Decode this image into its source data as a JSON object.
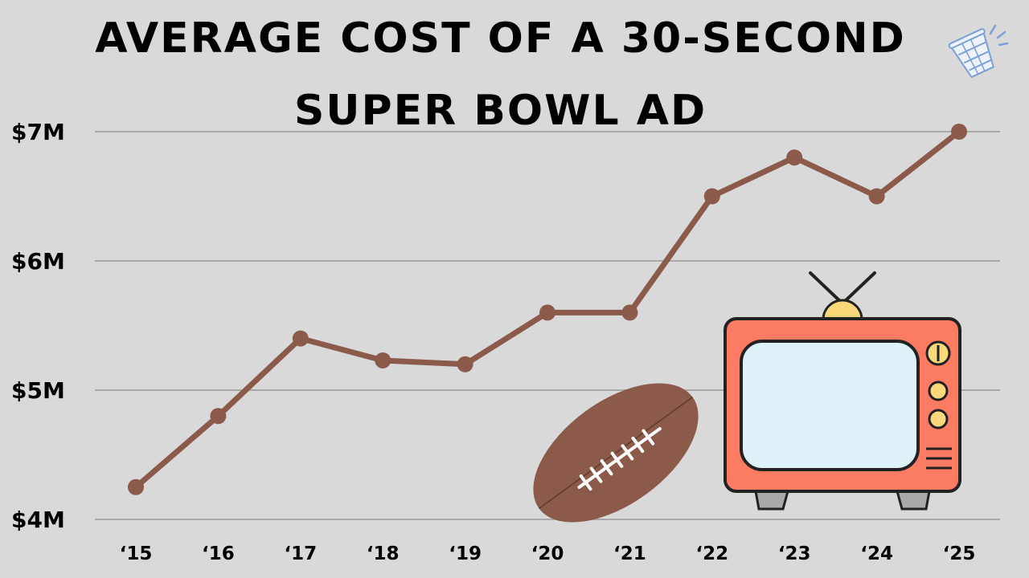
{
  "chart_data": {
    "type": "line",
    "title_lines": [
      "AVERAGE COST OF A 30-SECOND",
      "SUPER BOWL AD"
    ],
    "xlabel": "",
    "ylabel": "",
    "categories": [
      "‘15",
      "‘16",
      "‘17",
      "‘18",
      "‘19",
      "‘20",
      "‘21",
      "‘22",
      "‘23",
      "‘24",
      "‘25"
    ],
    "values": [
      4.25,
      4.8,
      5.4,
      5.23,
      5.2,
      5.6,
      5.6,
      6.5,
      6.8,
      6.5,
      7.0
    ],
    "value_unit": "$M",
    "ylim": [
      4,
      7
    ],
    "yticks": [
      4,
      5,
      6,
      7
    ],
    "ytick_labels": [
      "$4M",
      "$5M",
      "$6M",
      "$7M"
    ],
    "grid": true,
    "line_color": "#8b5a4a",
    "grid_color": "#a9a9a9"
  },
  "decorations": {
    "football": "football-illustration",
    "television": "retro-tv-illustration",
    "cup": "drink-cup-icon",
    "tv_body_color": "#fb7b63",
    "tv_screen_color": "#dff2fa",
    "tv_knob_color": "#fbd87a",
    "football_color": "#8b5a4a"
  }
}
